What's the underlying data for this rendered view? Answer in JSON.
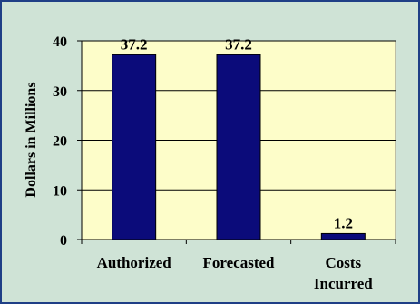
{
  "chart_data": {
    "type": "bar",
    "title": "",
    "xlabel": "",
    "ylabel": "Dollars in Millions",
    "ylim": [
      0,
      40
    ],
    "yticks": [
      0,
      10,
      20,
      30,
      40
    ],
    "grid": true,
    "legend": "none",
    "categories": [
      [
        "Authorized"
      ],
      [
        "Forecasted"
      ],
      [
        "Costs",
        "Incurred"
      ]
    ],
    "values": [
      37.2,
      37.2,
      1.2
    ],
    "data_labels": [
      "37.2",
      "37.2",
      "1.2"
    ],
    "colors": {
      "bar": "#0b0b7a",
      "plot_background": "#fdfdc9",
      "frame_background": "#cfe3d6",
      "frame_border": "#1f3f86",
      "grid": "#000000"
    }
  }
}
